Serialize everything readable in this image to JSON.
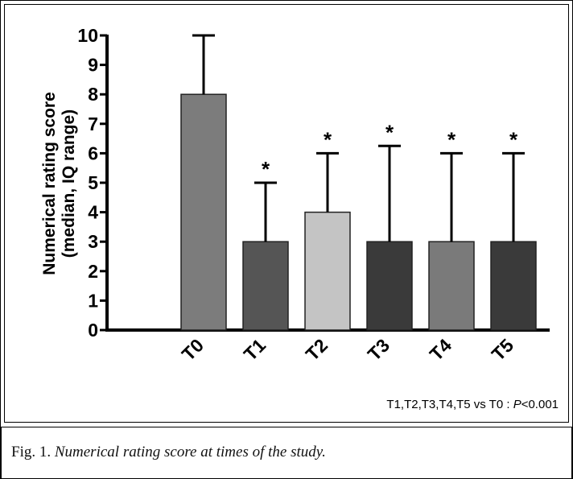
{
  "chart_data": {
    "type": "bar",
    "title": "",
    "xlabel": "",
    "ylabel_line1": "Numerical rating score",
    "ylabel_line2": "(median, IQ range)",
    "ylim": [
      0,
      10
    ],
    "yticks": [
      "0",
      "1",
      "2",
      "3",
      "4",
      "5",
      "6",
      "7",
      "8",
      "9",
      "10"
    ],
    "categories": [
      "T0",
      "T1",
      "T2",
      "T3",
      "T4",
      "T5"
    ],
    "values": [
      8,
      3,
      4,
      3,
      3,
      3
    ],
    "error_upper": [
      10,
      5,
      6,
      6.25,
      6,
      6
    ],
    "significance": [
      "",
      "*",
      "*",
      "*",
      "*",
      "*"
    ],
    "bar_colors": [
      "#7c7c7c",
      "#555555",
      "#c4c4c4",
      "#3a3a3a",
      "#7a7a7a",
      "#3a3a3a"
    ],
    "grid": false,
    "legend": "none"
  },
  "annotation": {
    "prefix": "T1,T2,T3,T4,T5 vs T0 : ",
    "p_label": "P",
    "p_value": "<0.001"
  },
  "caption": {
    "lead": "Fig. 1.",
    "text": "Numerical rating score at times of the study."
  }
}
